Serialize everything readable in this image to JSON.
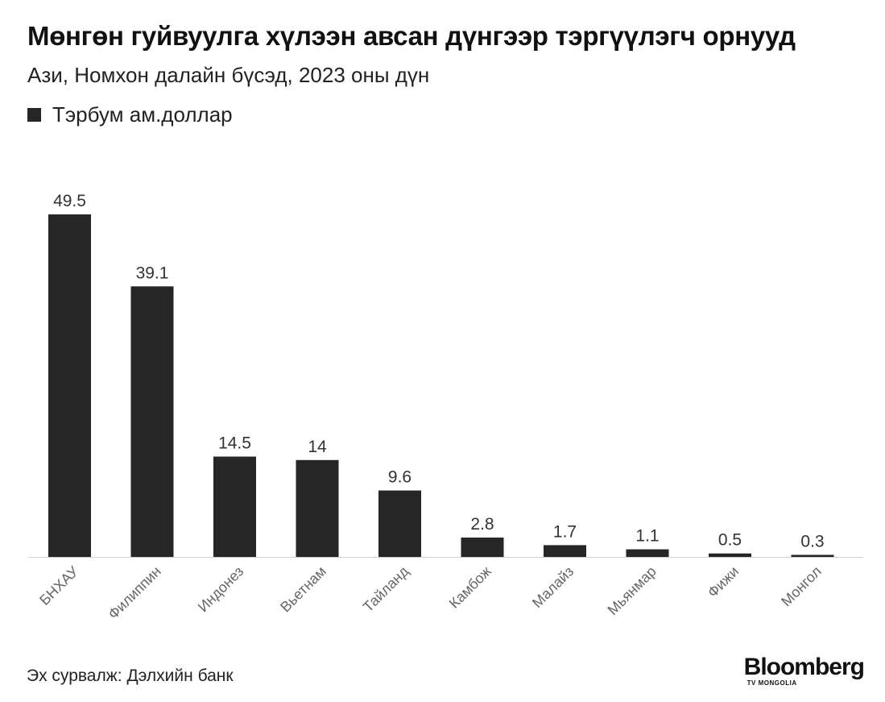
{
  "title": "Мөнгөн гуйвуулга хүлээн авсан дүнгээр тэргүүлэгч орнууд",
  "subtitle": "Ази, Номхон далайн бүсэд, 2023 оны дүн",
  "legend": {
    "label": "Тэрбум ам.доллар",
    "color": "#262626"
  },
  "source": "Эх сурвалж: Дэлхийн банк",
  "logo": {
    "main": "Bloomberg",
    "sub": "TV MONGOLIA"
  },
  "chart_data": {
    "type": "bar",
    "categories": [
      "БНХАУ",
      "Филиппин",
      "Индонез",
      "Вьетнам",
      "Тайланд",
      "Камбож",
      "Малайз",
      "Мьянмар",
      "Фижи",
      "Монгол"
    ],
    "series": [
      {
        "name": "Тэрбум ам.доллар",
        "values": [
          49.5,
          39.1,
          14.5,
          14,
          9.6,
          2.8,
          1.7,
          1.1,
          0.5,
          0.3
        ]
      }
    ],
    "data_labels": [
      "49.5",
      "39.1",
      "14.5",
      "14",
      "9.6",
      "2.8",
      "1.7",
      "1.1",
      "0.5",
      "0.3"
    ],
    "ylim": [
      0,
      49.5
    ],
    "bar_color": "#262626",
    "grid": false
  }
}
